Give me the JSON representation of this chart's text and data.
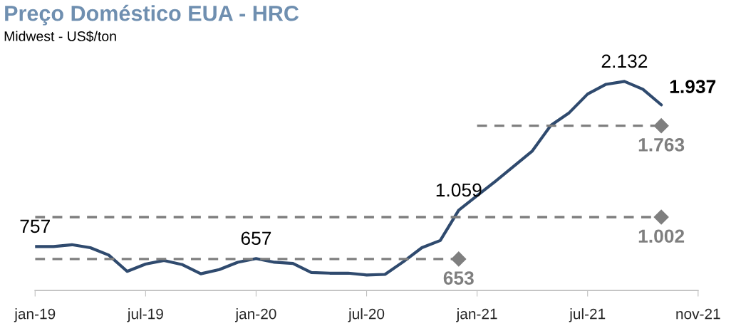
{
  "chart_data": {
    "type": "line",
    "title": "Preço Doméstico EUA - HRC",
    "subtitle": "Midwest - US$/ton",
    "categories": [
      "jan-19",
      null,
      null,
      null,
      null,
      null,
      "jul-19",
      null,
      null,
      null,
      null,
      null,
      "jan-20",
      null,
      null,
      null,
      null,
      null,
      "jul-20",
      null,
      null,
      null,
      null,
      null,
      "jan-21",
      null,
      null,
      null,
      null,
      null,
      "jul-21",
      null,
      null,
      null,
      null,
      null,
      "nov-21"
    ],
    "tick_labels": "x",
    "grid": false,
    "legend": false,
    "series": [
      {
        "color": "#2f4a6e",
        "line_style": "solid",
        "values": [
          757,
          757,
          772,
          747,
          686,
          550,
          611,
          641,
          606,
          530,
          565,
          626,
          657,
          626,
          616,
          540,
          535,
          535,
          520,
          525,
          631,
          747,
          807,
          1059,
          1180,
          1301,
          1427,
          1553,
          1765,
          1871,
          2027,
          2108,
          2132,
          2067,
          1937,
          null,
          null
        ],
        "value_labels": [
          "757",
          null,
          null,
          null,
          null,
          null,
          null,
          null,
          null,
          null,
          null,
          null,
          "657",
          null,
          null,
          null,
          null,
          null,
          null,
          null,
          null,
          null,
          null,
          "1.059",
          null,
          null,
          null,
          null,
          null,
          null,
          null,
          null,
          "2.132",
          null,
          "1.937",
          null,
          null
        ]
      },
      {
        "color": "#7f7f7f",
        "line_style": "dashed",
        "values": [
          653,
          653,
          653,
          653,
          653,
          653,
          653,
          653,
          653,
          653,
          653,
          653,
          653,
          653,
          653,
          653,
          653,
          653,
          653,
          653,
          653,
          653,
          653,
          653,
          null,
          null,
          null,
          null,
          null,
          null,
          null,
          null,
          null,
          null,
          null,
          null,
          null
        ],
        "value_labels": [
          null,
          null,
          null,
          null,
          null,
          null,
          null,
          null,
          null,
          null,
          null,
          null,
          null,
          null,
          null,
          null,
          null,
          null,
          null,
          null,
          null,
          null,
          null,
          "653",
          null,
          null,
          null,
          null,
          null,
          null,
          null,
          null,
          null,
          null,
          null,
          null,
          null
        ]
      },
      {
        "color": "#7f7f7f",
        "line_style": "dashed",
        "values": [
          1002,
          1002,
          1002,
          1002,
          1002,
          1002,
          1002,
          1002,
          1002,
          1002,
          1002,
          1002,
          1002,
          1002,
          1002,
          1002,
          1002,
          1002,
          1002,
          1002,
          1002,
          1002,
          1002,
          1002,
          1002,
          1002,
          1002,
          1002,
          1002,
          1002,
          1002,
          1002,
          1002,
          1002,
          1002,
          null,
          null
        ],
        "value_labels": [
          null,
          null,
          null,
          null,
          null,
          null,
          null,
          null,
          null,
          null,
          null,
          null,
          null,
          null,
          null,
          null,
          null,
          null,
          null,
          null,
          null,
          null,
          null,
          null,
          null,
          null,
          null,
          null,
          null,
          null,
          null,
          null,
          null,
          null,
          "1.002",
          null,
          null
        ]
      },
      {
        "color": "#7f7f7f",
        "line_style": "dashed",
        "values": [
          null,
          null,
          null,
          null,
          null,
          null,
          null,
          null,
          null,
          null,
          null,
          null,
          null,
          null,
          null,
          null,
          null,
          null,
          null,
          null,
          null,
          null,
          null,
          null,
          1763,
          1763,
          1763,
          1763,
          1763,
          1763,
          1763,
          1763,
          1763,
          1763,
          1763,
          null,
          null
        ],
        "value_labels": [
          null,
          null,
          null,
          null,
          null,
          null,
          null,
          null,
          null,
          null,
          null,
          null,
          null,
          null,
          null,
          null,
          null,
          null,
          null,
          null,
          null,
          null,
          null,
          null,
          null,
          null,
          null,
          null,
          null,
          null,
          null,
          null,
          null,
          null,
          "1.763",
          null,
          null
        ]
      }
    ]
  }
}
